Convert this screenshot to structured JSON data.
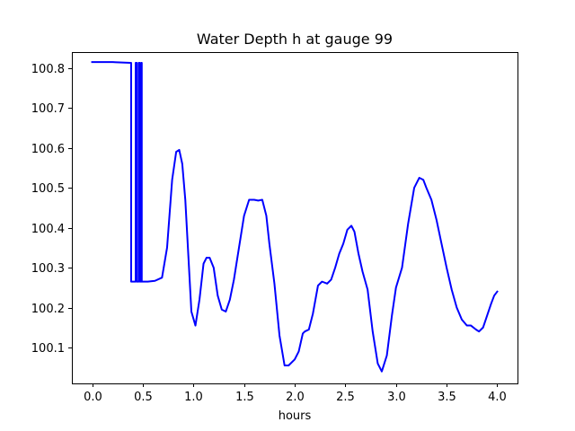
{
  "chart_data": {
    "type": "line",
    "title": "Water Depth h at gauge 99",
    "xlabel": "hours",
    "ylabel": "",
    "xlim": [
      -0.2,
      4.2
    ],
    "ylim": [
      100.01,
      100.84
    ],
    "grid": false,
    "legend": "none",
    "x_ticks": [
      0.0,
      0.5,
      1.0,
      1.5,
      2.0,
      2.5,
      3.0,
      3.5,
      4.0
    ],
    "x_tick_labels": [
      "0.0",
      "0.5",
      "1.0",
      "1.5",
      "2.0",
      "2.5",
      "3.0",
      "3.5",
      "4.0"
    ],
    "y_ticks": [
      100.1,
      100.2,
      100.3,
      100.4,
      100.5,
      100.6,
      100.7,
      100.8
    ],
    "y_tick_labels": [
      "100.1",
      "100.2",
      "100.3",
      "100.4",
      "100.5",
      "100.6",
      "100.7",
      "100.8"
    ],
    "series": [
      {
        "color": "#0000ff",
        "x": [
          0.0,
          0.2,
          0.38,
          0.385,
          0.385,
          0.43,
          0.43,
          0.44,
          0.44,
          0.46,
          0.46,
          0.47,
          0.47,
          0.485,
          0.485,
          0.49,
          0.49,
          0.55,
          0.62,
          0.69,
          0.74,
          0.79,
          0.83,
          0.86,
          0.89,
          0.92,
          0.95,
          0.98,
          1.02,
          1.06,
          1.1,
          1.13,
          1.16,
          1.2,
          1.24,
          1.28,
          1.32,
          1.36,
          1.4,
          1.45,
          1.5,
          1.55,
          1.6,
          1.64,
          1.68,
          1.72,
          1.75,
          1.8,
          1.85,
          1.9,
          1.94,
          2.0,
          2.04,
          2.08,
          2.1,
          2.14,
          2.18,
          2.23,
          2.27,
          2.32,
          2.36,
          2.4,
          2.44,
          2.48,
          2.52,
          2.56,
          2.59,
          2.63,
          2.67,
          2.72,
          2.77,
          2.82,
          2.86,
          2.91,
          2.96,
          3.0,
          3.06,
          3.12,
          3.18,
          3.23,
          3.27,
          3.3,
          3.35,
          3.4,
          3.45,
          3.5,
          3.55,
          3.6,
          3.65,
          3.7,
          3.74,
          3.79,
          3.82,
          3.86,
          3.9,
          3.94,
          3.97,
          4.0
        ],
        "y": [
          100.815,
          100.815,
          100.813,
          100.813,
          100.265,
          100.265,
          100.813,
          100.813,
          100.265,
          100.265,
          100.813,
          100.813,
          100.265,
          100.265,
          100.813,
          100.813,
          100.265,
          100.265,
          100.267,
          100.275,
          100.35,
          100.52,
          100.59,
          100.595,
          100.56,
          100.47,
          100.33,
          100.19,
          100.155,
          100.22,
          100.31,
          100.325,
          100.325,
          100.3,
          100.23,
          100.195,
          100.19,
          100.22,
          100.27,
          100.35,
          100.43,
          100.47,
          100.47,
          100.468,
          100.47,
          100.43,
          100.36,
          100.26,
          100.13,
          100.055,
          100.055,
          100.07,
          100.09,
          100.135,
          100.14,
          100.145,
          100.185,
          100.255,
          100.265,
          100.26,
          100.27,
          100.3,
          100.335,
          100.36,
          100.395,
          100.405,
          100.39,
          100.335,
          100.29,
          100.245,
          100.14,
          100.06,
          100.04,
          100.08,
          100.18,
          100.25,
          100.3,
          100.41,
          100.5,
          100.525,
          100.52,
          100.5,
          100.47,
          100.42,
          100.36,
          100.3,
          100.245,
          100.2,
          100.17,
          100.155,
          100.155,
          100.145,
          100.14,
          100.15,
          100.18,
          100.21,
          100.23,
          100.24
        ]
      }
    ]
  }
}
